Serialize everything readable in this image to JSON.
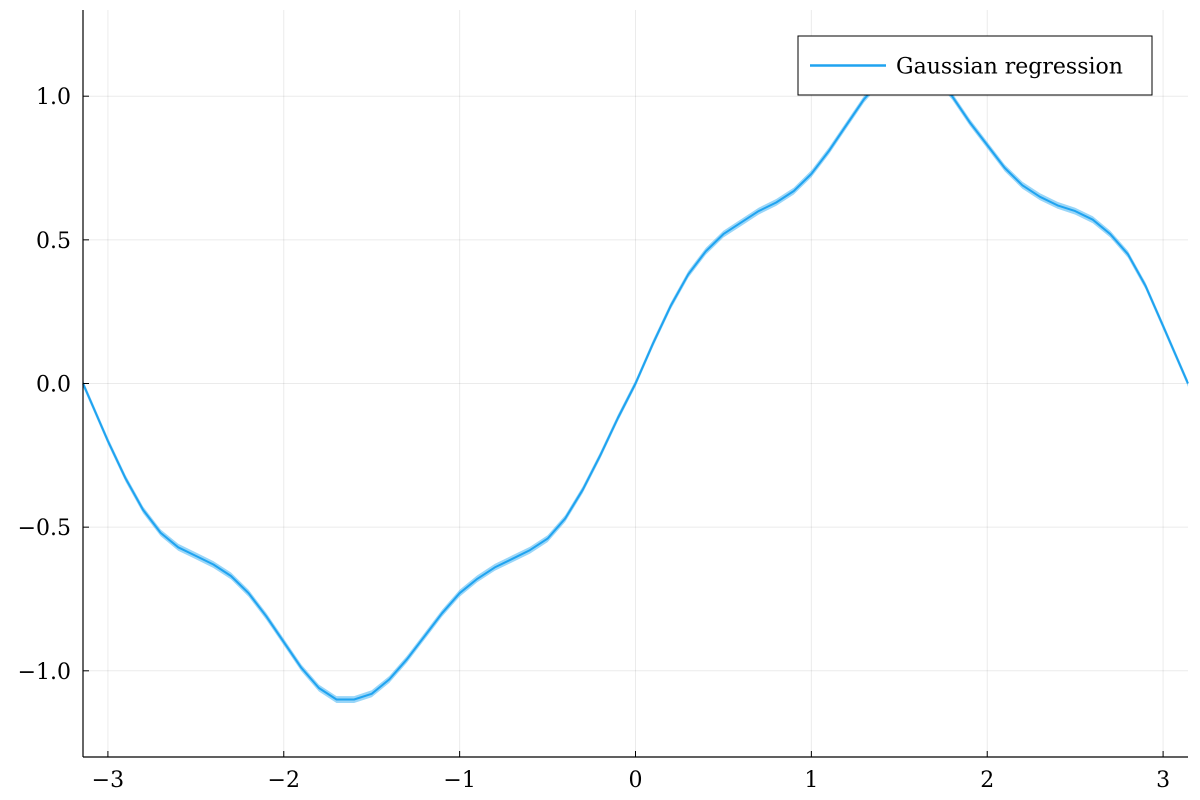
{
  "chart_data": {
    "type": "line",
    "title": "",
    "xlabel": "",
    "ylabel": "",
    "xlim": [
      -3.1416,
      3.1416
    ],
    "ylim": [
      -1.3,
      1.3
    ],
    "x_ticks": [
      -3,
      -2,
      -1,
      0,
      1,
      2,
      3
    ],
    "x_tick_labels": [
      "−3",
      "−2",
      "−1",
      "0",
      "1",
      "2",
      "3"
    ],
    "y_ticks": [
      -1.0,
      -0.5,
      0.0,
      0.5,
      1.0
    ],
    "y_tick_labels": [
      "−1.0",
      "−0.5",
      "0.0",
      "0.5",
      "1.0"
    ],
    "grid": true,
    "legend_position": "top-right",
    "series": [
      {
        "name": "Gaussian regression",
        "color": "#1fa3f0",
        "band": true,
        "x": [
          -3.1416,
          -3.0,
          -2.9,
          -2.8,
          -2.7,
          -2.6,
          -2.5,
          -2.4,
          -2.3,
          -2.2,
          -2.1,
          -2.0,
          -1.9,
          -1.8,
          -1.7,
          -1.6,
          -1.5,
          -1.4,
          -1.3,
          -1.2,
          -1.1,
          -1.0,
          -0.9,
          -0.8,
          -0.7,
          -0.6,
          -0.5,
          -0.4,
          -0.3,
          -0.2,
          -0.1,
          0.0,
          0.1,
          0.2,
          0.3,
          0.4,
          0.5,
          0.6,
          0.7,
          0.8,
          0.9,
          1.0,
          1.1,
          1.2,
          1.3,
          1.4,
          1.5,
          1.6,
          1.7,
          1.8,
          1.9,
          2.0,
          2.1,
          2.2,
          2.3,
          2.4,
          2.5,
          2.6,
          2.7,
          2.8,
          2.9,
          3.0,
          3.1416
        ],
        "y": [
          0.0,
          -0.2,
          -0.33,
          -0.44,
          -0.52,
          -0.57,
          -0.6,
          -0.63,
          -0.67,
          -0.73,
          -0.81,
          -0.9,
          -0.99,
          -1.06,
          -1.1,
          -1.1,
          -1.08,
          -1.03,
          -0.96,
          -0.88,
          -0.8,
          -0.73,
          -0.68,
          -0.64,
          -0.61,
          -0.58,
          -0.54,
          -0.47,
          -0.37,
          -0.25,
          -0.12,
          0.0,
          0.14,
          0.27,
          0.38,
          0.46,
          0.52,
          0.56,
          0.6,
          0.63,
          0.67,
          0.73,
          0.81,
          0.9,
          0.99,
          1.06,
          1.1,
          1.1,
          1.07,
          1.0,
          0.91,
          0.83,
          0.75,
          0.69,
          0.65,
          0.62,
          0.6,
          0.57,
          0.52,
          0.45,
          0.34,
          0.2,
          0.0
        ]
      }
    ]
  }
}
